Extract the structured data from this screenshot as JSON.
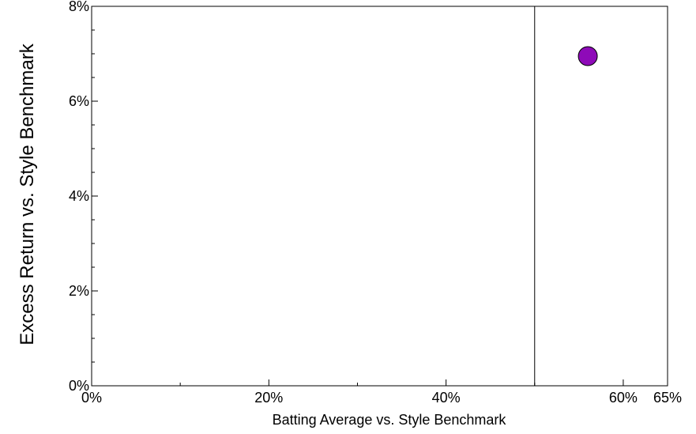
{
  "chart_data": {
    "type": "scatter",
    "xlabel": "Batting Average vs. Style Benchmark",
    "ylabel": "Excess Return vs. Style Benchmark",
    "xlim": [
      0,
      65
    ],
    "ylim": [
      0,
      8
    ],
    "x_ticks": [
      {
        "value": 0,
        "label": "0%"
      },
      {
        "value": 20,
        "label": "20%"
      },
      {
        "value": 40,
        "label": "40%"
      },
      {
        "value": 60,
        "label": "60%"
      },
      {
        "value": 65,
        "label": "65%"
      }
    ],
    "x_minor_ticks": [
      10,
      30,
      50
    ],
    "y_ticks": [
      {
        "value": 0,
        "label": "0%"
      },
      {
        "value": 2,
        "label": "2%"
      },
      {
        "value": 4,
        "label": "4%"
      },
      {
        "value": 6,
        "label": "6%"
      },
      {
        "value": 8,
        "label": "8%"
      }
    ],
    "y_minor_ticks": [
      0.5,
      1,
      1.5,
      2.5,
      3,
      3.5,
      4.5,
      5,
      5.5,
      6.5,
      7,
      7.5
    ],
    "reference_line_x": 50,
    "grid": false,
    "series": [
      {
        "points": [
          {
            "x": 56.0,
            "y": 6.95
          }
        ],
        "color": "#8e0ab8"
      }
    ]
  }
}
